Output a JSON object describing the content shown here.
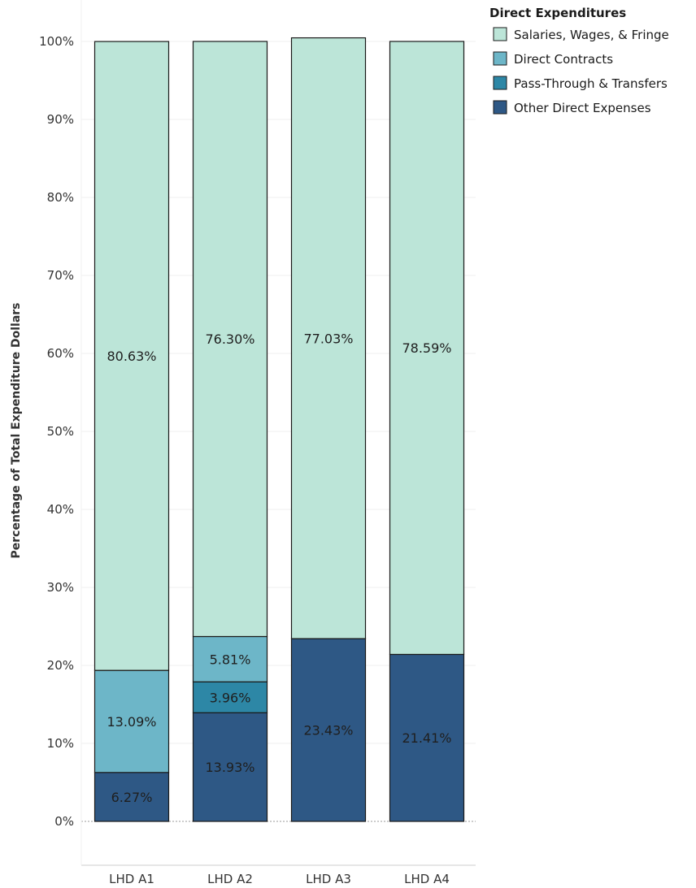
{
  "chart_data": {
    "type": "bar",
    "stacked": true,
    "categories": [
      "LHD A1",
      "LHD A2",
      "LHD A3",
      "LHD A4"
    ],
    "ylabel": "Percentage of Total Expenditure Dollars",
    "ylim": [
      0,
      100
    ],
    "y_ticks": [
      "0%",
      "10%",
      "20%",
      "30%",
      "40%",
      "50%",
      "60%",
      "70%",
      "80%",
      "90%",
      "100%"
    ],
    "grid": true,
    "legend": {
      "title": "Direct Expenditures",
      "position": "top-right"
    },
    "series": [
      {
        "name": "Other Direct Expenses",
        "color": "#2e5885",
        "values": [
          6.27,
          13.93,
          23.43,
          21.41
        ],
        "labels": [
          "6.27%",
          "13.93%",
          "23.43%",
          "21.41%"
        ]
      },
      {
        "name": "Pass-Through & Transfers",
        "color": "#2d87a6",
        "values": [
          0,
          3.96,
          0,
          0
        ],
        "labels": [
          "",
          "3.96%",
          "",
          ""
        ]
      },
      {
        "name": "Direct Contracts",
        "color": "#6db6c8",
        "values": [
          13.09,
          5.81,
          0,
          0
        ],
        "labels": [
          "13.09%",
          "5.81%",
          "",
          ""
        ]
      },
      {
        "name": "Salaries, Wages, & Fringe",
        "color": "#bce5d8",
        "values": [
          80.63,
          76.3,
          77.03,
          78.59
        ],
        "labels": [
          "80.63%",
          "76.30%",
          "77.03%",
          "78.59%"
        ]
      }
    ],
    "legend_order": [
      "Salaries, Wages, & Fringe",
      "Direct Contracts",
      "Pass-Through & Transfers",
      "Other Direct Expenses"
    ]
  }
}
